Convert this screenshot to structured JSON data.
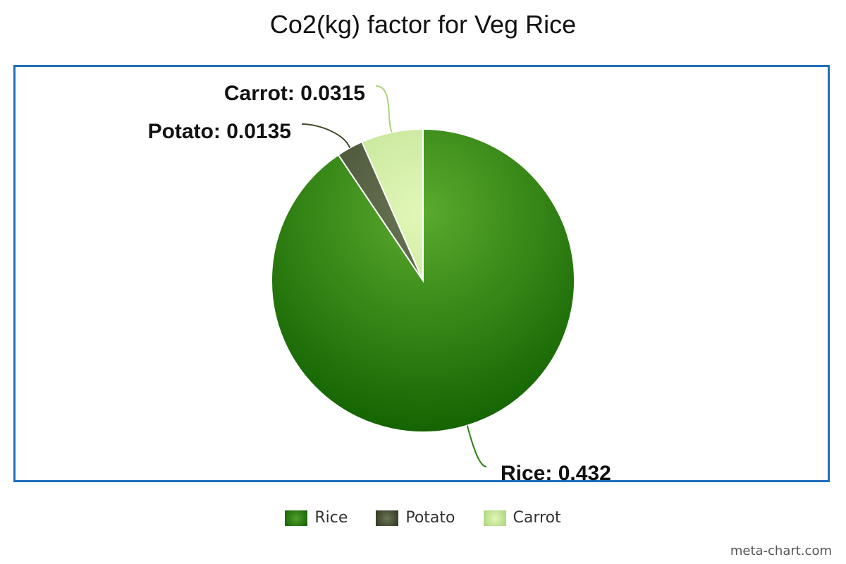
{
  "chart_data": {
    "type": "pie",
    "title": "Co2(kg) factor for Veg Rice",
    "categories": [
      "Rice",
      "Potato",
      "Carrot"
    ],
    "values": [
      0.432,
      0.0135,
      0.0315
    ],
    "labels": [
      "Rice: 0.432",
      "Potato: 0.0135",
      "Carrot: 0.0315"
    ],
    "colors": [
      "#2c7d14",
      "#3f4a2c",
      "#c4e59a"
    ],
    "legend": "bottom"
  },
  "credit": "meta-chart.com"
}
